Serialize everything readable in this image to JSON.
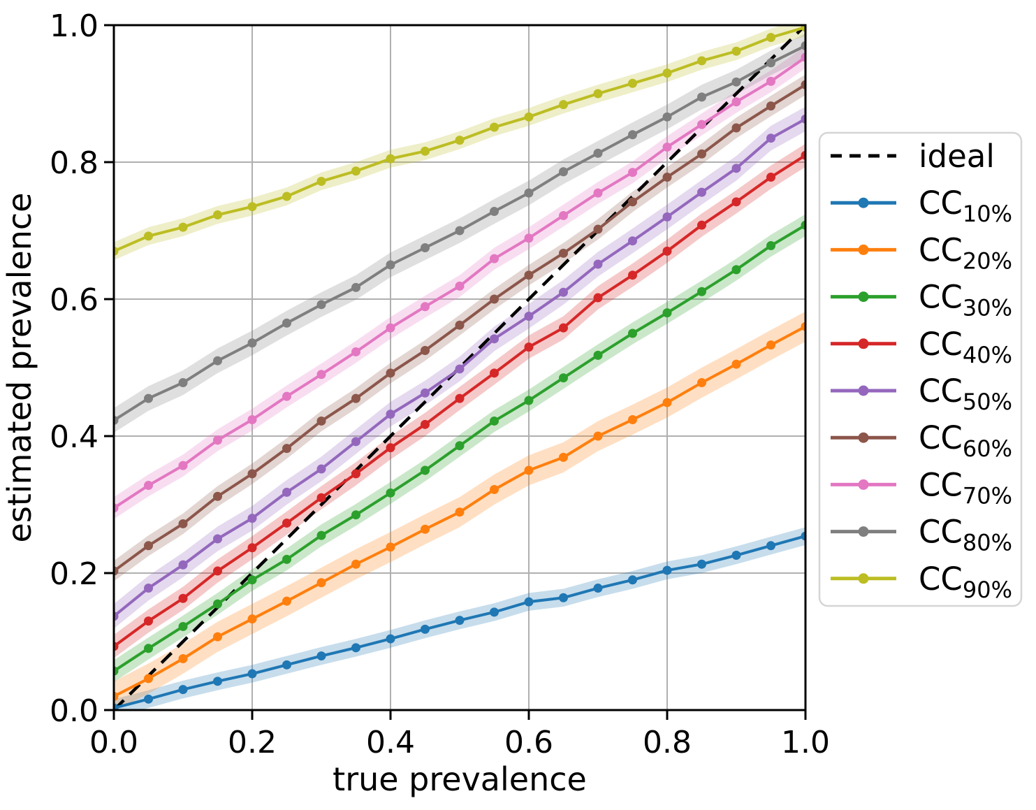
{
  "chart_data": {
    "type": "line",
    "title": "",
    "xlabel": "true prevalence",
    "ylabel": "estimated prevalence",
    "xlim": [
      0.0,
      1.0
    ],
    "ylim": [
      0.0,
      1.0
    ],
    "grid": true,
    "legend_position": "center right outside",
    "xticks": {
      "values": [
        0.0,
        0.2,
        0.4,
        0.6,
        0.8,
        1.0
      ],
      "labels": [
        "0.0",
        "0.2",
        "0.4",
        "0.6",
        "0.8",
        "1.0"
      ]
    },
    "yticks": {
      "values": [
        0.0,
        0.2,
        0.4,
        0.6,
        0.8,
        1.0
      ],
      "labels": [
        "0.0",
        "0.2",
        "0.4",
        "0.6",
        "0.8",
        "1.0"
      ]
    },
    "x": [
      0.0,
      0.05,
      0.1,
      0.15,
      0.2,
      0.25,
      0.3,
      0.35,
      0.4,
      0.45,
      0.5,
      0.55,
      0.6,
      0.65,
      0.7,
      0.75,
      0.8,
      0.85,
      0.9,
      0.95,
      1.0
    ],
    "ideal": {
      "label": "ideal",
      "color": "#000000",
      "linestyle": "dashed",
      "x": [
        0.0,
        1.0
      ],
      "y": [
        0.0,
        1.0
      ]
    },
    "series": [
      {
        "label_base": "CC",
        "label_sub": "10%",
        "color": "#1f77b4",
        "band_halfwidth": 0.013,
        "values": [
          0.003,
          0.016,
          0.03,
          0.042,
          0.053,
          0.066,
          0.079,
          0.091,
          0.104,
          0.118,
          0.131,
          0.143,
          0.158,
          0.164,
          0.178,
          0.19,
          0.204,
          0.213,
          0.226,
          0.24,
          0.254
        ]
      },
      {
        "label_base": "CC",
        "label_sub": "20%",
        "color": "#ff7f0e",
        "band_halfwidth": 0.022,
        "values": [
          0.02,
          0.046,
          0.075,
          0.107,
          0.133,
          0.159,
          0.186,
          0.213,
          0.238,
          0.264,
          0.289,
          0.322,
          0.35,
          0.369,
          0.4,
          0.424,
          0.449,
          0.478,
          0.505,
          0.533,
          0.56
        ]
      },
      {
        "label_base": "CC",
        "label_sub": "30%",
        "color": "#2ca02c",
        "band_halfwidth": 0.016,
        "values": [
          0.057,
          0.09,
          0.122,
          0.155,
          0.19,
          0.22,
          0.255,
          0.285,
          0.317,
          0.35,
          0.386,
          0.422,
          0.452,
          0.485,
          0.518,
          0.55,
          0.58,
          0.611,
          0.643,
          0.678,
          0.708
        ]
      },
      {
        "label_base": "CC",
        "label_sub": "40%",
        "color": "#d62728",
        "band_halfwidth": 0.017,
        "values": [
          0.093,
          0.13,
          0.163,
          0.203,
          0.237,
          0.273,
          0.31,
          0.345,
          0.383,
          0.417,
          0.455,
          0.492,
          0.53,
          0.558,
          0.602,
          0.635,
          0.67,
          0.708,
          0.742,
          0.778,
          0.81
        ]
      },
      {
        "label_base": "CC",
        "label_sub": "50%",
        "color": "#9467bd",
        "band_halfwidth": 0.018,
        "values": [
          0.137,
          0.178,
          0.212,
          0.25,
          0.28,
          0.318,
          0.352,
          0.392,
          0.432,
          0.463,
          0.498,
          0.542,
          0.575,
          0.61,
          0.651,
          0.685,
          0.72,
          0.756,
          0.791,
          0.835,
          0.863
        ]
      },
      {
        "label_base": "CC",
        "label_sub": "60%",
        "color": "#8c564b",
        "band_halfwidth": 0.015,
        "values": [
          0.203,
          0.24,
          0.272,
          0.312,
          0.345,
          0.382,
          0.422,
          0.455,
          0.492,
          0.525,
          0.562,
          0.6,
          0.635,
          0.667,
          0.702,
          0.742,
          0.778,
          0.812,
          0.85,
          0.882,
          0.913
        ]
      },
      {
        "label_base": "CC",
        "label_sub": "70%",
        "color": "#e377c2",
        "band_halfwidth": 0.016,
        "values": [
          0.295,
          0.328,
          0.357,
          0.394,
          0.424,
          0.458,
          0.49,
          0.523,
          0.558,
          0.589,
          0.619,
          0.659,
          0.689,
          0.722,
          0.755,
          0.785,
          0.822,
          0.855,
          0.888,
          0.918,
          0.953
        ]
      },
      {
        "label_base": "CC",
        "label_sub": "80%",
        "color": "#7f7f7f",
        "band_halfwidth": 0.018,
        "values": [
          0.423,
          0.455,
          0.478,
          0.51,
          0.536,
          0.565,
          0.592,
          0.617,
          0.65,
          0.675,
          0.7,
          0.728,
          0.755,
          0.786,
          0.813,
          0.84,
          0.866,
          0.895,
          0.917,
          0.945,
          0.97
        ]
      },
      {
        "label_base": "CC",
        "label_sub": "90%",
        "color": "#bcbd22",
        "band_halfwidth": 0.013,
        "values": [
          0.67,
          0.692,
          0.705,
          0.723,
          0.735,
          0.75,
          0.772,
          0.787,
          0.805,
          0.816,
          0.832,
          0.851,
          0.866,
          0.884,
          0.9,
          0.915,
          0.93,
          0.948,
          0.962,
          0.982,
          0.997
        ]
      }
    ],
    "style": {
      "grid_color": "#b0b0b0",
      "frame_color": "#000000",
      "background": "#ffffff",
      "band_opacity": 0.25,
      "legend_border": "#d5d5d5",
      "legend_background": "#ffffff"
    }
  }
}
